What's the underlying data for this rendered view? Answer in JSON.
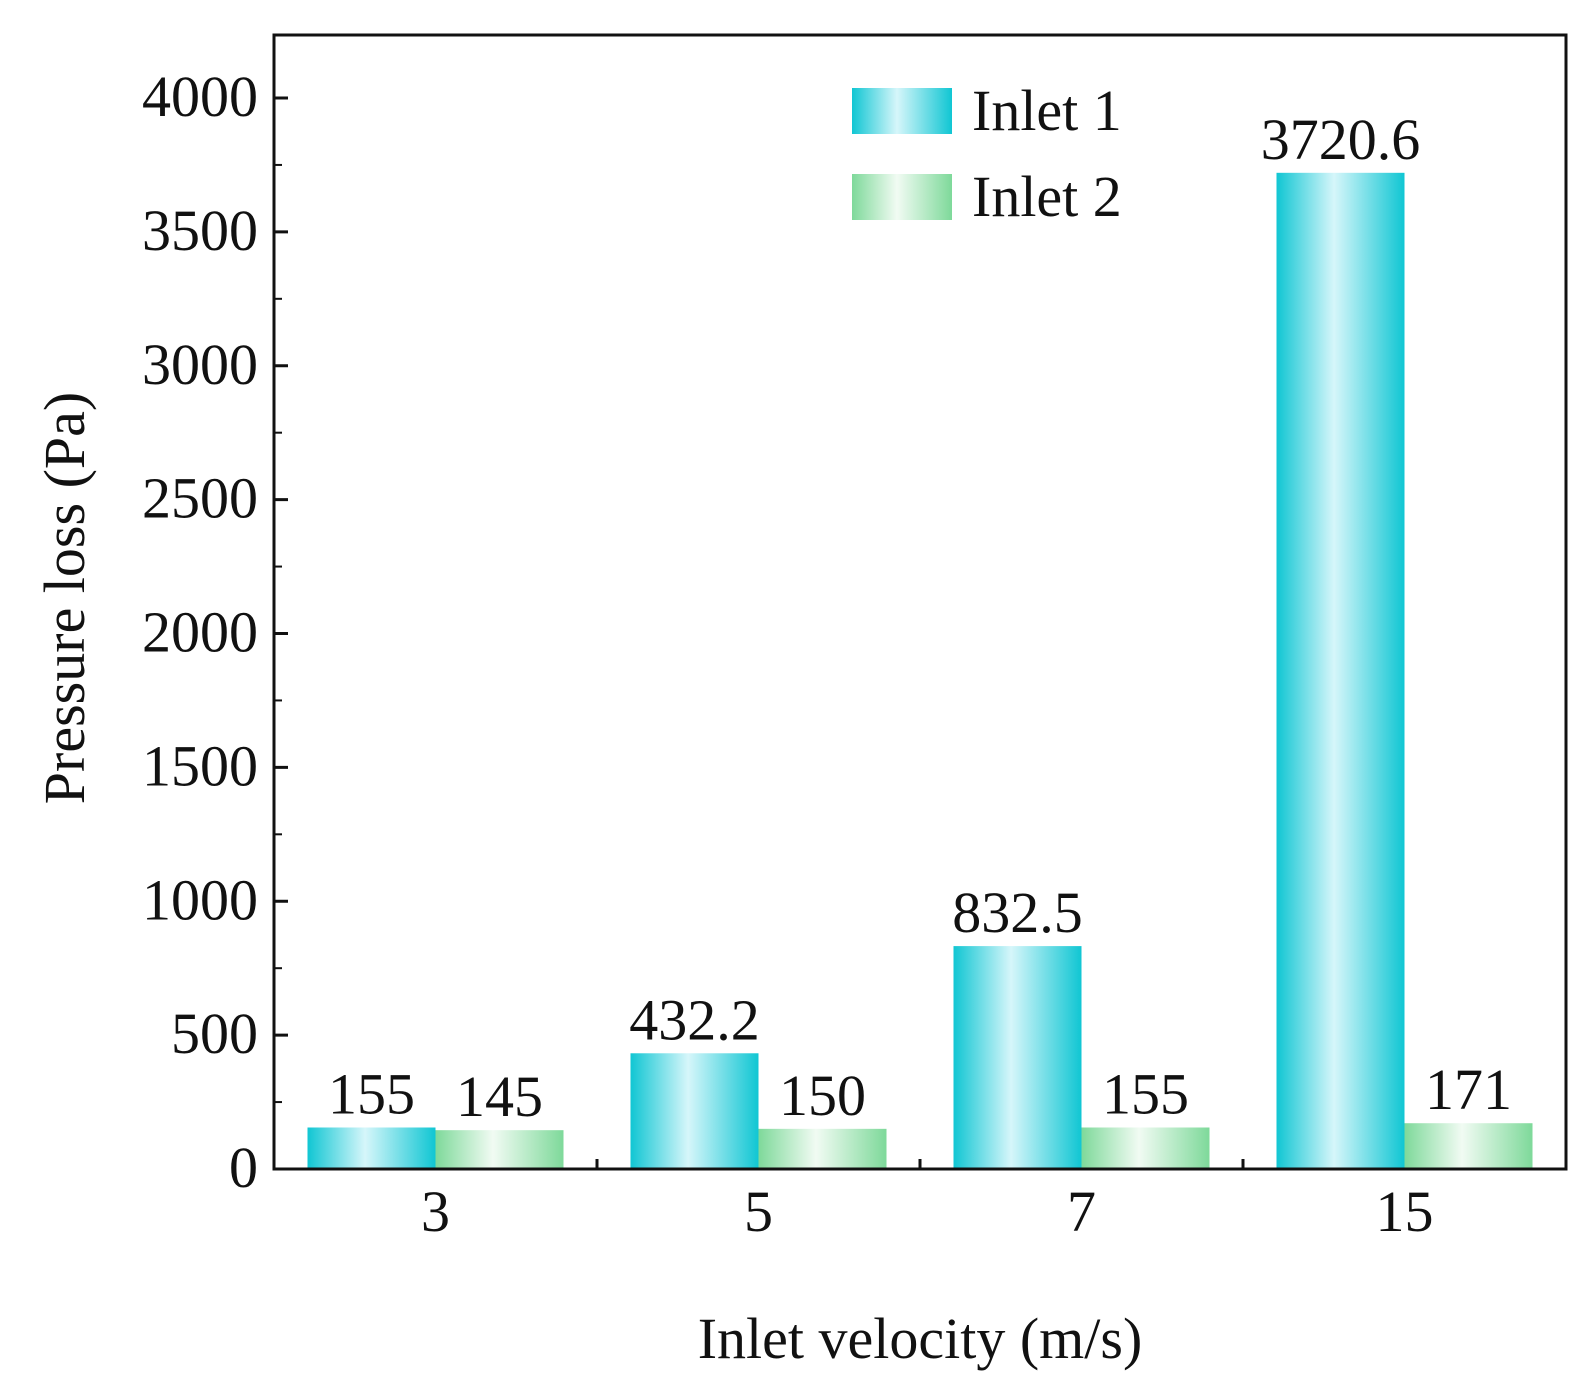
{
  "chart_data": {
    "type": "bar",
    "title": "",
    "xlabel": "Inlet velocity (m/s)",
    "ylabel": "Pressure loss (Pa)",
    "categories": [
      "3",
      "5",
      "7",
      "15"
    ],
    "ylim": [
      0,
      4250
    ],
    "yticks": [
      0,
      500,
      1000,
      1500,
      2000,
      2500,
      3000,
      3500,
      4000
    ],
    "ytick_labels": [
      "0",
      "500",
      "1000",
      "1500",
      "2000",
      "2500",
      "3000",
      "3500",
      "4000"
    ],
    "legend_position": "top-right",
    "series": [
      {
        "name": "Inlet 1",
        "color": "#10c6d3",
        "values": [
          155,
          432.2,
          832.5,
          3720.6
        ],
        "labels": [
          "155",
          "432.2",
          "832.5",
          "3720.6"
        ]
      },
      {
        "name": "Inlet 2",
        "color": "#7ed99a",
        "values": [
          145,
          150,
          155,
          171
        ],
        "labels": [
          "145",
          "150",
          "155",
          "171"
        ]
      }
    ]
  }
}
